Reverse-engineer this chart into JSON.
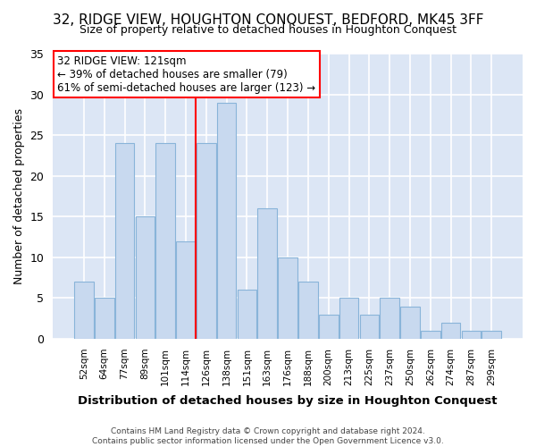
{
  "title": "32, RIDGE VIEW, HOUGHTON CONQUEST, BEDFORD, MK45 3FF",
  "subtitle": "Size of property relative to detached houses in Houghton Conquest",
  "xlabel": "Distribution of detached houses by size in Houghton Conquest",
  "ylabel": "Number of detached properties",
  "footer_line1": "Contains HM Land Registry data © Crown copyright and database right 2024.",
  "footer_line2": "Contains public sector information licensed under the Open Government Licence v3.0.",
  "annotation_line0": "32 RIDGE VIEW: 121sqm",
  "annotation_line1": "← 39% of detached houses are smaller (79)",
  "annotation_line2": "61% of semi-detached houses are larger (123) →",
  "bar_labels": [
    "52sqm",
    "64sqm",
    "77sqm",
    "89sqm",
    "101sqm",
    "114sqm",
    "126sqm",
    "138sqm",
    "151sqm",
    "163sqm",
    "176sqm",
    "188sqm",
    "200sqm",
    "213sqm",
    "225sqm",
    "237sqm",
    "250sqm",
    "262sqm",
    "274sqm",
    "287sqm",
    "299sqm"
  ],
  "bar_values": [
    7,
    5,
    24,
    15,
    24,
    12,
    24,
    29,
    6,
    16,
    10,
    7,
    3,
    5,
    3,
    5,
    4,
    1,
    2,
    1,
    1
  ],
  "bar_color": "#c8d9ef",
  "bar_edge_color": "#89b4d9",
  "vline_x_index": 5.5,
  "vline_color": "red",
  "bg_color": "#dce6f5",
  "grid_color": "white",
  "fig_bg_color": "#ffffff",
  "ylim": [
    0,
    35
  ],
  "yticks": [
    0,
    5,
    10,
    15,
    20,
    25,
    30,
    35
  ],
  "annotation_box_color": "white",
  "annotation_box_edge_color": "red"
}
